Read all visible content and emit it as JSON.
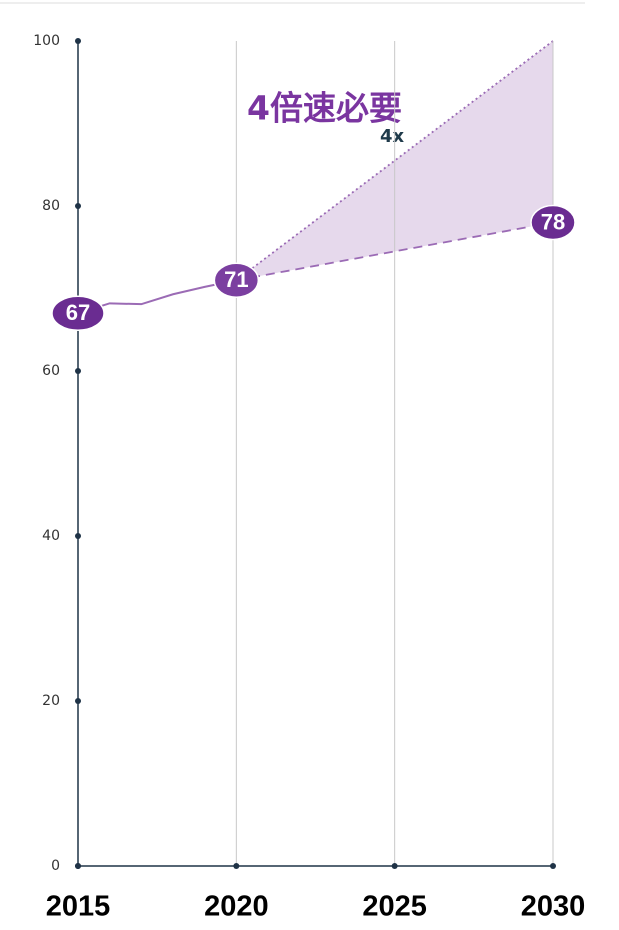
{
  "chart_data": {
    "type": "line",
    "annotations": [
      "4倍速必要",
      "4x"
    ],
    "xlim": [
      2015,
      2030
    ],
    "xticks": [
      2015,
      2020,
      2025,
      2030
    ],
    "ylim": [
      0,
      100
    ],
    "yticks": [
      0,
      20,
      40,
      60,
      80,
      100
    ],
    "grid": true,
    "fill_between": [
      1,
      2
    ],
    "fill_color": "#e6d9ec",
    "series": [
      {
        "color": "#9b6bb5",
        "style": "solid",
        "x": [
          2015,
          2016,
          2017,
          2018,
          2019,
          2020
        ],
        "values": [
          67,
          68.2,
          68.1,
          69.3,
          70.2,
          71
        ],
        "value_labels": [
          "67",
          null,
          null,
          null,
          null,
          "71"
        ]
      },
      {
        "color": "#9b6bb5",
        "style": "dashed",
        "x": [
          2020,
          2030
        ],
        "values": [
          71,
          78
        ],
        "value_labels": [
          null,
          "78"
        ]
      },
      {
        "color": "#9b6bb5",
        "style": "dotted",
        "x": [
          2020,
          2030
        ],
        "values": [
          71,
          100
        ]
      }
    ]
  }
}
